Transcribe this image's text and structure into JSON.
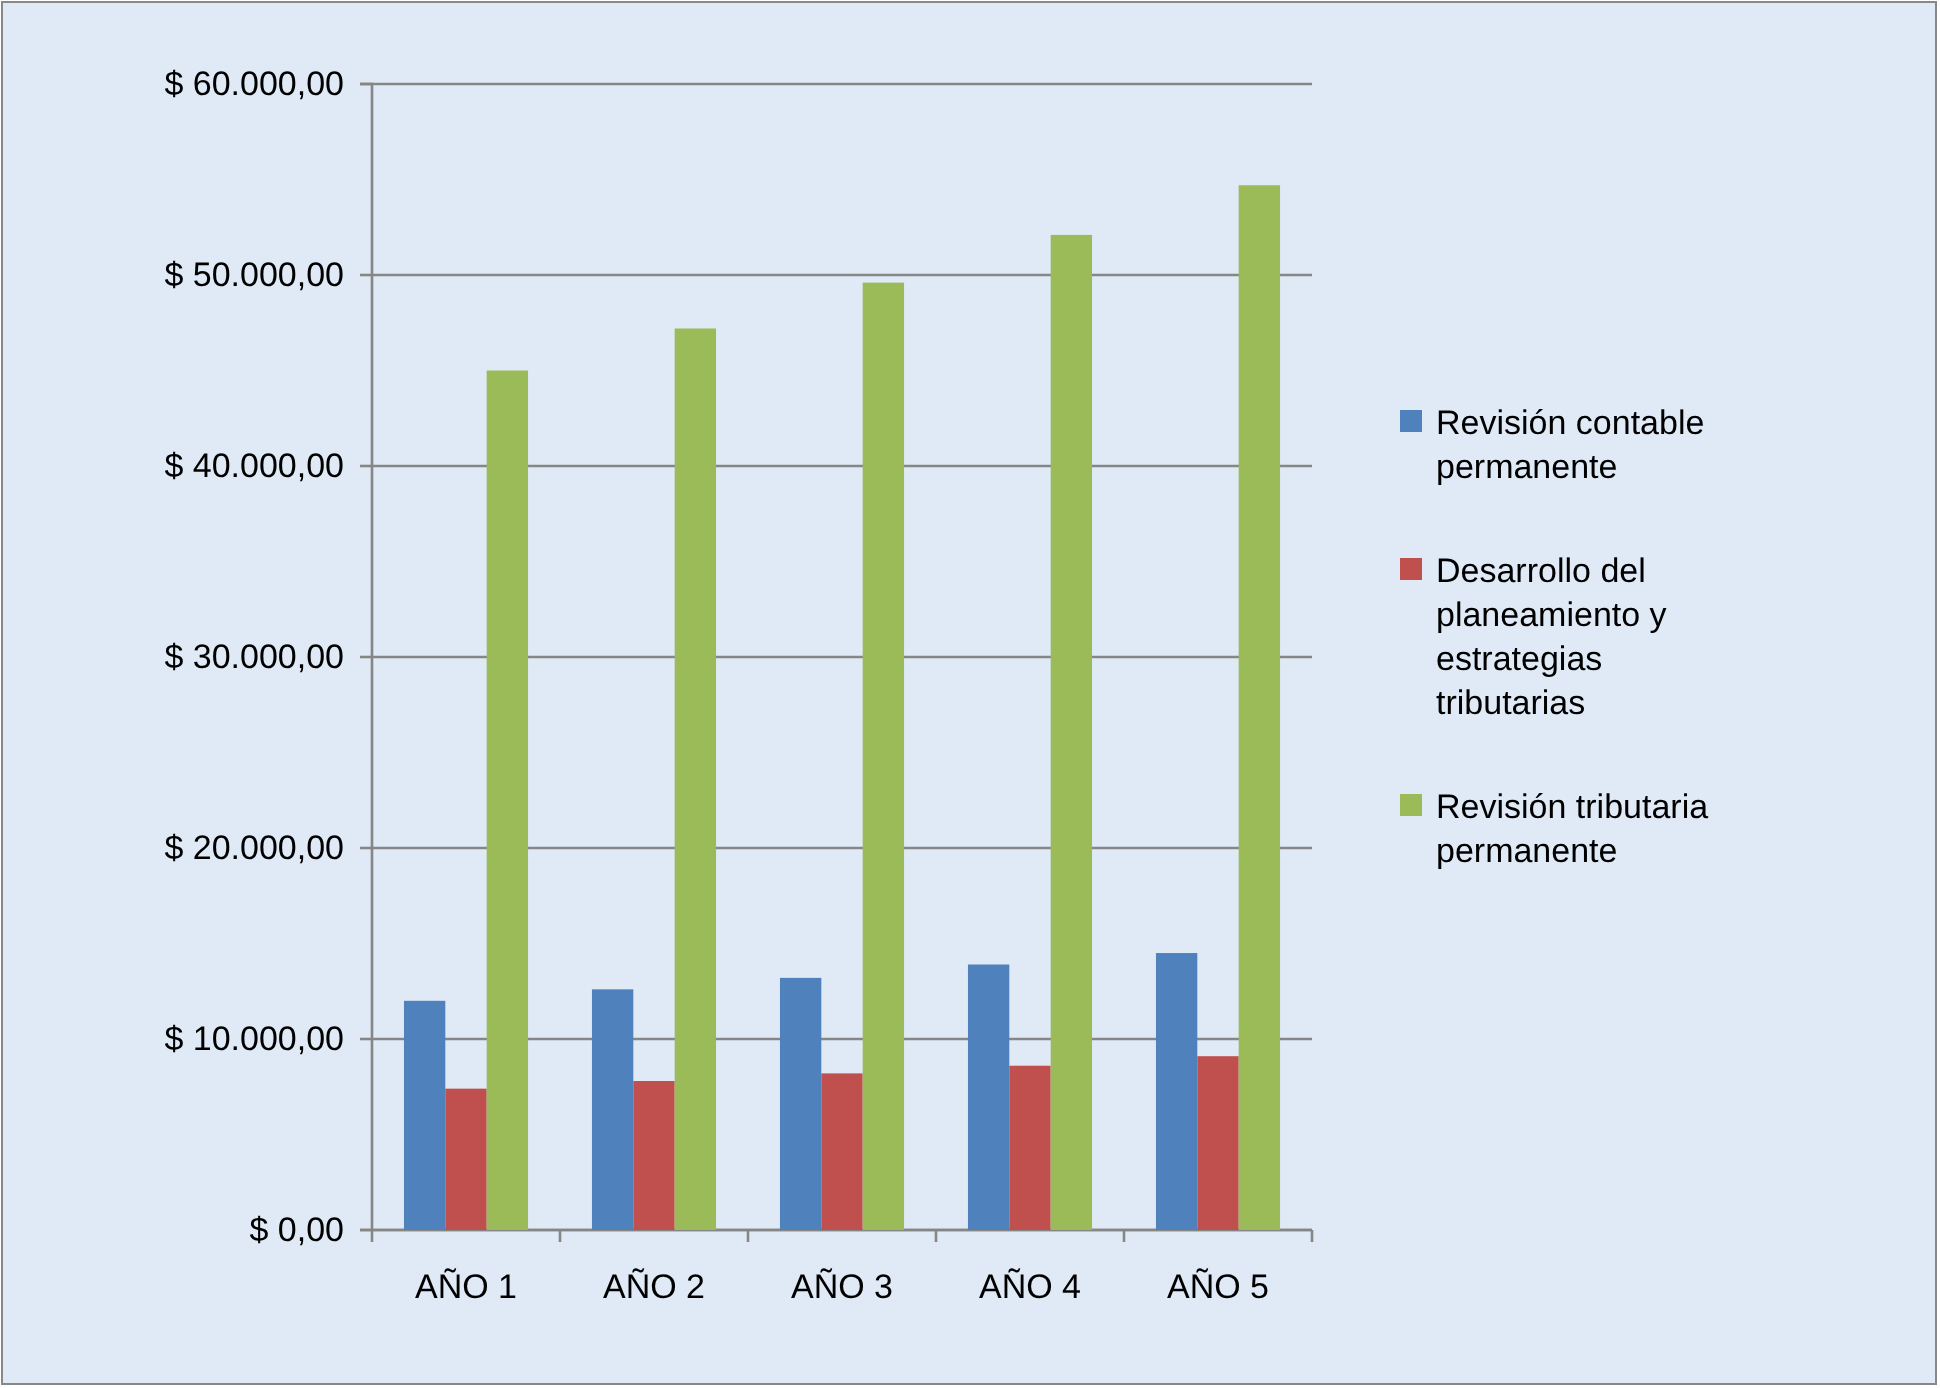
{
  "chart_data": {
    "type": "bar",
    "categories": [
      "AÑO 1",
      "AÑO 2",
      "AÑO 3",
      "AÑO 4",
      "AÑO 5"
    ],
    "series": [
      {
        "name": "Revisión contable permanente",
        "color": "#4f81bd",
        "values": [
          12000,
          12600,
          13200,
          13900,
          14500
        ]
      },
      {
        "name": "Desarrollo del planeamiento y estrategias tributarias",
        "color": "#c0504d",
        "values": [
          7400,
          7800,
          8200,
          8600,
          9100
        ]
      },
      {
        "name": "Revisión tributaria permanente",
        "color": "#9bbb59",
        "values": [
          45000,
          47200,
          49600,
          52100,
          54700
        ]
      }
    ],
    "ylim": [
      0,
      60000
    ],
    "yticks": [
      {
        "value": 0,
        "label": "$ 0,00"
      },
      {
        "value": 10000,
        "label": "$ 10.000,00"
      },
      {
        "value": 20000,
        "label": "$ 20.000,00"
      },
      {
        "value": 30000,
        "label": "$ 30.000,00"
      },
      {
        "value": 40000,
        "label": "$ 40.000,00"
      },
      {
        "value": 50000,
        "label": "$ 50.000,00"
      },
      {
        "value": 60000,
        "label": "$ 60.000,00"
      }
    ],
    "grid": "y",
    "legend": "right"
  }
}
